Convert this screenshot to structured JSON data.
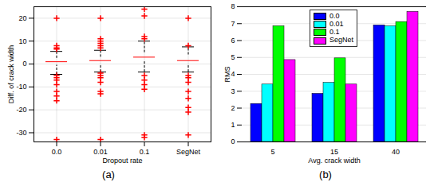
{
  "chart_data": [
    {
      "type": "box",
      "caption": "(a)",
      "x_label": "Dropout rate",
      "y_label": "Diff. of crack width",
      "categories": [
        "0.0",
        "0.01",
        "0.1",
        "SegNet"
      ],
      "boxes": [
        {
          "median": 1,
          "q1": -0.5,
          "q3": 2.5,
          "whisker_low": -4.5,
          "whisker_high": 5.5,
          "outliers": [
            20,
            8,
            7,
            6.5,
            -5,
            -6,
            -7,
            -9,
            -12,
            -14,
            -16,
            -33
          ]
        },
        {
          "median": 1.5,
          "q1": 0,
          "q3": 3,
          "whisker_low": -3.5,
          "whisker_high": 6,
          "outliers": [
            20,
            11,
            10,
            9,
            8,
            7,
            -4,
            -5,
            -6,
            -8,
            -12,
            -13,
            -33
          ]
        },
        {
          "median": 3,
          "q1": 1,
          "q3": 5,
          "whisker_low": -3.5,
          "whisker_high": 10,
          "outliers": [
            24,
            21,
            12,
            11,
            -5,
            -7,
            -9,
            -11,
            -31,
            -32
          ]
        },
        {
          "median": 1.5,
          "q1": 0,
          "q3": 4,
          "whisker_low": -3.5,
          "whisker_high": 7.5,
          "outliers": [
            20,
            8,
            -5,
            -6,
            -8,
            -12,
            -15,
            -19,
            -21,
            -31
          ]
        }
      ],
      "ylim": [
        -34,
        25
      ],
      "yticks": [
        -30,
        -20,
        -10,
        0,
        10,
        20
      ],
      "grid": true,
      "marker": "plus"
    },
    {
      "type": "bar",
      "caption": "(b)",
      "x_label": "Avg. crack width",
      "y_label": "RMS",
      "categories": [
        "5",
        "15",
        "40"
      ],
      "series": [
        {
          "name": "0.0",
          "color": "#0000ff",
          "values": [
            2.25,
            2.85,
            6.9
          ]
        },
        {
          "name": "0.01",
          "color": "#00ffff",
          "values": [
            3.4,
            3.5,
            6.85
          ]
        },
        {
          "name": "0.1",
          "color": "#00ff00",
          "values": [
            6.85,
            4.95,
            7.1
          ]
        },
        {
          "name": "SegNet",
          "color": "#ff00ff",
          "values": [
            4.85,
            3.4,
            7.7
          ]
        }
      ],
      "ylim": [
        0,
        8
      ],
      "yticks": [
        0,
        1,
        2,
        3,
        4,
        5,
        6,
        7,
        8
      ],
      "grid": true,
      "legend": "top"
    }
  ]
}
